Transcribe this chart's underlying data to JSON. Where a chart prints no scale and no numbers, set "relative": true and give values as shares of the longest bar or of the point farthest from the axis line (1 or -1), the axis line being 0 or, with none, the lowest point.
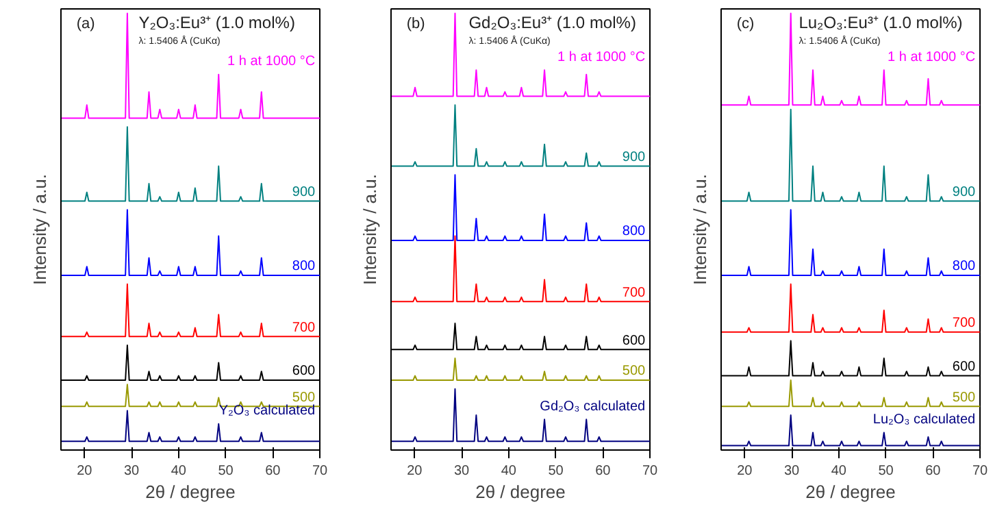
{
  "chart_data": [
    {
      "type": "line",
      "relative": true,
      "title": "Y₂O₃:Eu³⁺ (1.0 mol%)",
      "subtitle": "λ: 1.5406 Å (CuKα)",
      "annotations": [
        "(a)"
      ],
      "xlabel": "2θ / degree",
      "ylabel": "Intensity / a.u.",
      "xlim": [
        15,
        70
      ],
      "xticks": [
        20,
        30,
        40,
        50,
        60,
        70
      ],
      "x": [
        15,
        20.1,
        20.5,
        20.9,
        28.7,
        29.1,
        29.5,
        33.3,
        33.7,
        34.1,
        35.6,
        36.0,
        36.4,
        39.6,
        40.0,
        40.4,
        43.1,
        43.5,
        43.9,
        48.1,
        48.5,
        48.9,
        52.8,
        53.2,
        53.6,
        57.2,
        57.6,
        58.0,
        70
      ],
      "series": [
        {
          "name": "Y₂O₃ calculated",
          "color": "#000080",
          "values": [
            0.02,
            0.02,
            0.03,
            0.02,
            0.02,
            0.09,
            0.02,
            0.02,
            0.04,
            0.02,
            0.02,
            0.03,
            0.02,
            0.02,
            0.03,
            0.02,
            0.02,
            0.03,
            0.02,
            0.02,
            0.06,
            0.02,
            0.02,
            0.03,
            0.02,
            0.02,
            0.04,
            0.02,
            0.02
          ]
        },
        {
          "name": "500",
          "color": "#999900",
          "values": [
            0.1,
            0.1,
            0.11,
            0.1,
            0.1,
            0.15,
            0.1,
            0.1,
            0.11,
            0.1,
            0.1,
            0.11,
            0.1,
            0.1,
            0.11,
            0.1,
            0.1,
            0.11,
            0.1,
            0.1,
            0.12,
            0.1,
            0.1,
            0.11,
            0.1,
            0.1,
            0.11,
            0.1,
            0.1
          ]
        },
        {
          "name": "600",
          "color": "#000000",
          "values": [
            0.16,
            0.16,
            0.17,
            0.16,
            0.16,
            0.24,
            0.16,
            0.16,
            0.18,
            0.16,
            0.16,
            0.17,
            0.16,
            0.16,
            0.17,
            0.16,
            0.16,
            0.17,
            0.16,
            0.16,
            0.2,
            0.16,
            0.16,
            0.17,
            0.16,
            0.16,
            0.18,
            0.16,
            0.16
          ]
        },
        {
          "name": "700",
          "color": "#ff0000",
          "values": [
            0.26,
            0.26,
            0.27,
            0.26,
            0.26,
            0.38,
            0.26,
            0.26,
            0.29,
            0.26,
            0.26,
            0.27,
            0.26,
            0.26,
            0.27,
            0.26,
            0.26,
            0.28,
            0.26,
            0.26,
            0.31,
            0.26,
            0.26,
            0.27,
            0.26,
            0.26,
            0.29,
            0.26,
            0.26
          ]
        },
        {
          "name": "800",
          "color": "#0000ff",
          "values": [
            0.4,
            0.4,
            0.42,
            0.4,
            0.4,
            0.55,
            0.4,
            0.4,
            0.44,
            0.4,
            0.4,
            0.41,
            0.4,
            0.4,
            0.42,
            0.4,
            0.4,
            0.42,
            0.4,
            0.4,
            0.49,
            0.4,
            0.4,
            0.41,
            0.4,
            0.4,
            0.44,
            0.4,
            0.4
          ]
        },
        {
          "name": "900",
          "color": "#008080",
          "values": [
            0.57,
            0.57,
            0.59,
            0.57,
            0.57,
            0.74,
            0.57,
            0.57,
            0.61,
            0.57,
            0.57,
            0.58,
            0.57,
            0.57,
            0.59,
            0.57,
            0.57,
            0.6,
            0.57,
            0.57,
            0.65,
            0.57,
            0.57,
            0.58,
            0.57,
            0.57,
            0.61,
            0.57,
            0.57
          ]
        },
        {
          "name": "1 h at 1000 °C",
          "color": "#ff00ff",
          "values": [
            0.76,
            0.76,
            0.79,
            0.76,
            0.76,
            1,
            0.76,
            0.76,
            0.82,
            0.76,
            0.76,
            0.78,
            0.76,
            0.76,
            0.78,
            0.76,
            0.76,
            0.79,
            0.76,
            0.76,
            0.86,
            0.76,
            0.76,
            0.78,
            0.76,
            0.76,
            0.82,
            0.76,
            0.76
          ]
        }
      ]
    },
    {
      "type": "line",
      "relative": true,
      "title": "Gd₂O₃:Eu³⁺ (1.0 mol%)",
      "subtitle": "λ: 1.5406 Å (CuKα)",
      "annotations": [
        "(b)"
      ],
      "xlabel": "2θ / degree",
      "ylabel": "Intensity / a.u.",
      "xlim": [
        15,
        70
      ],
      "xticks": [
        20,
        30,
        40,
        50,
        60,
        70
      ],
      "x": [
        15,
        19.7,
        20.1,
        20.5,
        28.2,
        28.6,
        29.0,
        32.7,
        33.1,
        33.5,
        34.9,
        35.3,
        35.7,
        38.8,
        39.2,
        39.6,
        42.3,
        42.7,
        43.1,
        47.2,
        47.6,
        48.0,
        51.7,
        52.1,
        52.5,
        56.1,
        56.5,
        56.9,
        58.8,
        59.2,
        59.6,
        70
      ],
      "series": [
        {
          "name": "Gd₂O₃ calculated",
          "color": "#000080",
          "values": [
            0.02,
            0.02,
            0.03,
            0.02,
            0.02,
            0.14,
            0.02,
            0.02,
            0.08,
            0.02,
            0.02,
            0.03,
            0.02,
            0.02,
            0.03,
            0.02,
            0.02,
            0.03,
            0.02,
            0.02,
            0.07,
            0.02,
            0.02,
            0.03,
            0.02,
            0.02,
            0.07,
            0.02,
            0.02,
            0.03,
            0.02,
            0.02
          ]
        },
        {
          "name": "500",
          "color": "#999900",
          "values": [
            0.16,
            0.16,
            0.17,
            0.16,
            0.16,
            0.21,
            0.16,
            0.16,
            0.17,
            0.16,
            0.16,
            0.17,
            0.16,
            0.16,
            0.17,
            0.16,
            0.16,
            0.17,
            0.16,
            0.16,
            0.18,
            0.16,
            0.16,
            0.17,
            0.16,
            0.16,
            0.17,
            0.16,
            0.16,
            0.17,
            0.16,
            0.16
          ]
        },
        {
          "name": "600",
          "color": "#000000",
          "values": [
            0.23,
            0.23,
            0.24,
            0.23,
            0.23,
            0.29,
            0.23,
            0.23,
            0.26,
            0.23,
            0.23,
            0.24,
            0.23,
            0.23,
            0.24,
            0.23,
            0.23,
            0.24,
            0.23,
            0.23,
            0.26,
            0.23,
            0.23,
            0.24,
            0.23,
            0.23,
            0.26,
            0.23,
            0.23,
            0.24,
            0.23,
            0.23
          ]
        },
        {
          "name": "700",
          "color": "#ff0000",
          "values": [
            0.34,
            0.34,
            0.35,
            0.34,
            0.34,
            0.49,
            0.34,
            0.34,
            0.38,
            0.34,
            0.34,
            0.35,
            0.34,
            0.34,
            0.35,
            0.34,
            0.34,
            0.35,
            0.34,
            0.34,
            0.39,
            0.34,
            0.34,
            0.35,
            0.34,
            0.34,
            0.38,
            0.34,
            0.34,
            0.35,
            0.34,
            0.34
          ]
        },
        {
          "name": "800",
          "color": "#0000ff",
          "values": [
            0.48,
            0.48,
            0.49,
            0.48,
            0.48,
            0.63,
            0.48,
            0.48,
            0.53,
            0.48,
            0.48,
            0.49,
            0.48,
            0.48,
            0.49,
            0.48,
            0.48,
            0.49,
            0.48,
            0.48,
            0.54,
            0.48,
            0.48,
            0.49,
            0.48,
            0.48,
            0.52,
            0.48,
            0.48,
            0.49,
            0.48,
            0.48
          ]
        },
        {
          "name": "900",
          "color": "#008080",
          "values": [
            0.65,
            0.65,
            0.66,
            0.65,
            0.65,
            0.79,
            0.65,
            0.65,
            0.69,
            0.65,
            0.65,
            0.66,
            0.65,
            0.65,
            0.66,
            0.65,
            0.65,
            0.66,
            0.65,
            0.65,
            0.7,
            0.65,
            0.65,
            0.66,
            0.65,
            0.65,
            0.68,
            0.65,
            0.65,
            0.66,
            0.65,
            0.65
          ]
        },
        {
          "name": "1 h at 1000 °C",
          "color": "#ff00ff",
          "values": [
            0.81,
            0.81,
            0.83,
            0.81,
            0.81,
            1,
            0.81,
            0.81,
            0.87,
            0.81,
            0.81,
            0.83,
            0.81,
            0.81,
            0.82,
            0.81,
            0.81,
            0.83,
            0.81,
            0.81,
            0.87,
            0.81,
            0.81,
            0.82,
            0.81,
            0.81,
            0.86,
            0.81,
            0.81,
            0.82,
            0.81,
            0.81
          ]
        }
      ]
    },
    {
      "type": "line",
      "relative": true,
      "title": "Lu₂O₃:Eu³⁺ (1.0 mol%)",
      "subtitle": "λ: 1.5406 Å (CuKα)",
      "annotations": [
        "(c)"
      ],
      "xlabel": "2θ / degree",
      "ylabel": "Intensity / a.u.",
      "xlim": [
        15,
        70
      ],
      "xticks": [
        20,
        30,
        40,
        50,
        60,
        70
      ],
      "x": [
        15,
        20.5,
        20.9,
        21.3,
        29.4,
        29.8,
        30.2,
        34.1,
        34.5,
        34.9,
        36.2,
        36.6,
        37.0,
        40.2,
        40.6,
        41.0,
        43.9,
        44.3,
        44.7,
        49.2,
        49.6,
        50.0,
        54.0,
        54.4,
        54.8,
        58.6,
        59.0,
        59.4,
        61.4,
        61.8,
        62.2,
        70
      ],
      "series": [
        {
          "name": "Lu₂O₃ calculated",
          "color": "#000080",
          "values": [
            0.01,
            0.01,
            0.02,
            0.01,
            0.01,
            0.08,
            0.01,
            0.01,
            0.04,
            0.01,
            0.01,
            0.02,
            0.01,
            0.01,
            0.02,
            0.01,
            0.01,
            0.02,
            0.01,
            0.01,
            0.04,
            0.01,
            0.01,
            0.02,
            0.01,
            0.01,
            0.03,
            0.01,
            0.01,
            0.02,
            0.01,
            0.01
          ]
        },
        {
          "name": "500",
          "color": "#999900",
          "values": [
            0.1,
            0.1,
            0.11,
            0.1,
            0.1,
            0.16,
            0.1,
            0.1,
            0.12,
            0.1,
            0.1,
            0.11,
            0.1,
            0.1,
            0.11,
            0.1,
            0.1,
            0.11,
            0.1,
            0.1,
            0.12,
            0.1,
            0.1,
            0.11,
            0.1,
            0.1,
            0.12,
            0.1,
            0.1,
            0.11,
            0.1,
            0.1
          ]
        },
        {
          "name": "600",
          "color": "#000000",
          "values": [
            0.17,
            0.17,
            0.19,
            0.17,
            0.17,
            0.25,
            0.17,
            0.17,
            0.2,
            0.17,
            0.17,
            0.18,
            0.17,
            0.17,
            0.18,
            0.17,
            0.17,
            0.19,
            0.17,
            0.17,
            0.21,
            0.17,
            0.17,
            0.18,
            0.17,
            0.17,
            0.19,
            0.17,
            0.17,
            0.18,
            0.17,
            0.17
          ]
        },
        {
          "name": "700",
          "color": "#ff0000",
          "values": [
            0.27,
            0.27,
            0.28,
            0.27,
            0.27,
            0.38,
            0.27,
            0.27,
            0.31,
            0.27,
            0.27,
            0.28,
            0.27,
            0.27,
            0.28,
            0.27,
            0.27,
            0.28,
            0.27,
            0.27,
            0.32,
            0.27,
            0.27,
            0.28,
            0.27,
            0.27,
            0.3,
            0.27,
            0.27,
            0.28,
            0.27,
            0.27
          ]
        },
        {
          "name": "800",
          "color": "#0000ff",
          "values": [
            0.4,
            0.4,
            0.42,
            0.4,
            0.4,
            0.55,
            0.4,
            0.4,
            0.46,
            0.4,
            0.4,
            0.41,
            0.4,
            0.4,
            0.41,
            0.4,
            0.4,
            0.42,
            0.4,
            0.4,
            0.46,
            0.4,
            0.4,
            0.41,
            0.4,
            0.4,
            0.44,
            0.4,
            0.4,
            0.41,
            0.4,
            0.4
          ]
        },
        {
          "name": "900",
          "color": "#008080",
          "values": [
            0.57,
            0.57,
            0.59,
            0.57,
            0.57,
            0.78,
            0.57,
            0.57,
            0.65,
            0.57,
            0.57,
            0.59,
            0.57,
            0.57,
            0.58,
            0.57,
            0.57,
            0.59,
            0.57,
            0.57,
            0.65,
            0.57,
            0.57,
            0.58,
            0.57,
            0.57,
            0.63,
            0.57,
            0.57,
            0.58,
            0.57,
            0.57
          ]
        },
        {
          "name": "1 h at 1000 °C",
          "color": "#ff00ff",
          "values": [
            0.79,
            0.79,
            0.81,
            0.79,
            0.79,
            1,
            0.79,
            0.79,
            0.87,
            0.79,
            0.79,
            0.81,
            0.79,
            0.79,
            0.8,
            0.79,
            0.79,
            0.81,
            0.79,
            0.79,
            0.87,
            0.79,
            0.79,
            0.8,
            0.79,
            0.79,
            0.85,
            0.79,
            0.79,
            0.8,
            0.79,
            0.79
          ]
        }
      ]
    }
  ]
}
